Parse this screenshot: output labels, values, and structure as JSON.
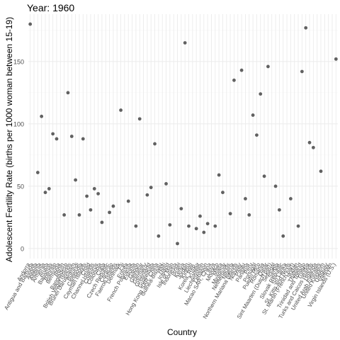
{
  "chart_data": {
    "type": "scatter",
    "title": "Year: 1960",
    "xlabel": "Country",
    "ylabel": "Adolescent Fertility Rate (births per 1000 woman between 15-19)",
    "ylim": [
      -8,
      188
    ],
    "y_ticks": [
      0,
      50,
      100,
      150
    ],
    "grid": true,
    "legend": "none",
    "point_color": "#595959",
    "grid_color": "#ebebeb",
    "categories": [
      "Andorra",
      "Antigua and Barbuda",
      "Angola",
      "Albania",
      "Armenia",
      "Aruba",
      "Bahamas",
      "Bahrain",
      "Bermuda",
      "Benin",
      "Bangladesh",
      "British Virgin Islands",
      "Brunei Darussalam",
      "Burundi",
      "Cambodia",
      "Cayman Islands",
      "Chad",
      "Channel Islands",
      "Comoros",
      "Colombia",
      "Cuba",
      "Czech Republic",
      "Curacao",
      "Faeroe Islands",
      "Denmark",
      "Fiji",
      "Eritrea",
      "French Polynesia",
      "Estonia",
      "Gabon",
      "Gibraltar",
      "Germany",
      "Greenland",
      "Guatemala",
      "Hong Kong SAR, China",
      "Guinea-Bissau",
      "Haiti",
      "Iceland",
      "Isle of Man",
      "Indonesia",
      "Israel",
      "Kenya",
      "Jordan",
      "Kiribati",
      "Korea, Rep.",
      "Kuwait",
      "Liechtenstein",
      "Lebanon",
      "Macao SAR, China",
      "Libya",
      "Monaco",
      "Malta",
      "Myanmar",
      "Netherlands",
      "Nigeria",
      "Northern Mariana Islands",
      "Norway",
      "Palau",
      "Panama",
      "Peru",
      "Portugal",
      "Puerto Rico",
      "Romania",
      "Qatar",
      "Sint Maarten (Dutch part)",
      "Senegal",
      "Serbia",
      "Slovak Republic",
      "Sri Lanka",
      "St. Kitts and Nevis",
      "St. Martin (French part)",
      "Sudan",
      "Thailand",
      "Trinidad and Tobago",
      "Tunisia",
      "Turks and Caicos Islands",
      "Uganda",
      "United Arab Emirates",
      "United Kingdom",
      "Uruguay",
      "Vietnam",
      "Virgin Islands (U.S.)"
    ],
    "x_tick_labels": [
      "Andorra",
      "Antigua and Barbuda",
      "Angola",
      "Albania",
      "Armenia",
      "Aruba",
      "Bahamas",
      "Bahrain",
      "Bermuda",
      "Benin",
      "Bangladesh",
      "British Virgin Islands",
      "Brunei Darussalam",
      "Burundi",
      "Cambodia",
      "Cayman Islands",
      "Chad",
      "Channel Islands",
      "Comoros",
      "Colombia",
      "Cuba",
      "Czech Republic",
      "Curacao",
      "Faeroe Islands",
      "Denmark",
      "Fiji",
      "Eritrea",
      "French Polynesia",
      "Estonia",
      "Gabon",
      "Gibraltar",
      "Germany",
      "Greenland",
      "Guatemala",
      "Hong Kong SAR, China",
      "Guinea-Bissau",
      "Haiti",
      "Iceland",
      "Isle of Man",
      "Indonesia",
      "Israel",
      "Kenya",
      "Jordan",
      "Kiribati",
      "Korea, Rep.",
      "Kuwait",
      "Liechtenstein",
      "Lebanon",
      "Macao SAR, China",
      "Libya",
      "Monaco",
      "Malta",
      "Myanmar",
      "Netherlands",
      "Nigeria",
      "Northern Mariana Islands",
      "Norway",
      "Palau",
      "Panama",
      "Peru",
      "Portugal",
      "Puerto Rico",
      "Romania",
      "Qatar",
      "Sint Maarten (Dutch part)",
      "Senegal",
      "Serbia",
      "Slovak Republic",
      "Sri Lanka",
      "St. Kitts and Nevis",
      "St. Martin (French part)",
      "Sudan",
      "Thailand",
      "Trinidad and Tobago",
      "Tunisia",
      "Turks and Caicos Islands",
      "Uganda",
      "United Arab Emirates",
      "United Kingdom",
      "Uruguay",
      "Vietnam",
      "Virgin Islands (U.S.)"
    ],
    "points": [
      {
        "country": "Andorra",
        "value": 180
      },
      {
        "country": "Angola",
        "value": 61
      },
      {
        "country": "Albania",
        "value": 106
      },
      {
        "country": "Armenia",
        "value": 45
      },
      {
        "country": "Aruba",
        "value": 48
      },
      {
        "country": "Bahamas",
        "value": 92
      },
      {
        "country": "Bahrain",
        "value": 88
      },
      {
        "country": "Bangladesh",
        "value": 125
      },
      {
        "country": "Benin",
        "value": 27
      },
      {
        "country": "British Virgin Islands",
        "value": 90
      },
      {
        "country": "Brunei Darussalam",
        "value": 55
      },
      {
        "country": "Burundi",
        "value": 27
      },
      {
        "country": "Cambodia",
        "value": 88
      },
      {
        "country": "Cayman Islands",
        "value": 42
      },
      {
        "country": "Chad",
        "value": 31
      },
      {
        "country": "Channel Islands",
        "value": 48
      },
      {
        "country": "Comoros",
        "value": 44
      },
      {
        "country": "Colombia",
        "value": 21
      },
      {
        "country": "Czech Republic",
        "value": 29
      },
      {
        "country": "Curacao",
        "value": 34
      },
      {
        "country": "Denmark",
        "value": 111
      },
      {
        "country": "Eritrea",
        "value": 38
      },
      {
        "country": "Estonia",
        "value": 18
      },
      {
        "country": "Gabon",
        "value": 104
      },
      {
        "country": "Germany",
        "value": 43
      },
      {
        "country": "Greenland",
        "value": 49
      },
      {
        "country": "Guatemala",
        "value": 84
      },
      {
        "country": "Hong Kong SAR, China",
        "value": 10
      },
      {
        "country": "Haiti",
        "value": 52
      },
      {
        "country": "Iceland",
        "value": 19
      },
      {
        "country": "Indonesia",
        "value": 4
      },
      {
        "country": "Israel",
        "value": 32
      },
      {
        "country": "Kenya",
        "value": 165
      },
      {
        "country": "Jordan",
        "value": 18
      },
      {
        "country": "Korea, Rep.",
        "value": 16
      },
      {
        "country": "Kuwait",
        "value": 26
      },
      {
        "country": "Liechtenstein",
        "value": 13
      },
      {
        "country": "Lebanon",
        "value": 20
      },
      {
        "country": "Libya",
        "value": 18
      },
      {
        "country": "Malta",
        "value": 45
      },
      {
        "country": "Monaco",
        "value": 59
      },
      {
        "country": "Netherlands",
        "value": 28
      },
      {
        "country": "Nigeria",
        "value": 135
      },
      {
        "country": "Norway",
        "value": 143
      },
      {
        "country": "Palau",
        "value": 40
      },
      {
        "country": "Panama",
        "value": 27
      },
      {
        "country": "Peru",
        "value": 107
      },
      {
        "country": "Portugal",
        "value": 91
      },
      {
        "country": "Puerto Rico",
        "value": 124
      },
      {
        "country": "Qatar",
        "value": 146
      },
      {
        "country": "Romania",
        "value": 58
      },
      {
        "country": "Senegal",
        "value": 50
      },
      {
        "country": "Serbia",
        "value": 31
      },
      {
        "country": "Slovak Republic",
        "value": 10
      },
      {
        "country": "St. Kitts and Nevis",
        "value": 40
      },
      {
        "country": "Sudan",
        "value": 18
      },
      {
        "country": "Thailand",
        "value": 142
      },
      {
        "country": "Trinidad and Tobago",
        "value": 177
      },
      {
        "country": "Tunisia",
        "value": 85
      },
      {
        "country": "Turks and Caicos Islands",
        "value": 81
      },
      {
        "country": "United Arab Emirates",
        "value": 62
      },
      {
        "country": "Virgin Islands (U.S.)",
        "value": 152
      }
    ]
  }
}
